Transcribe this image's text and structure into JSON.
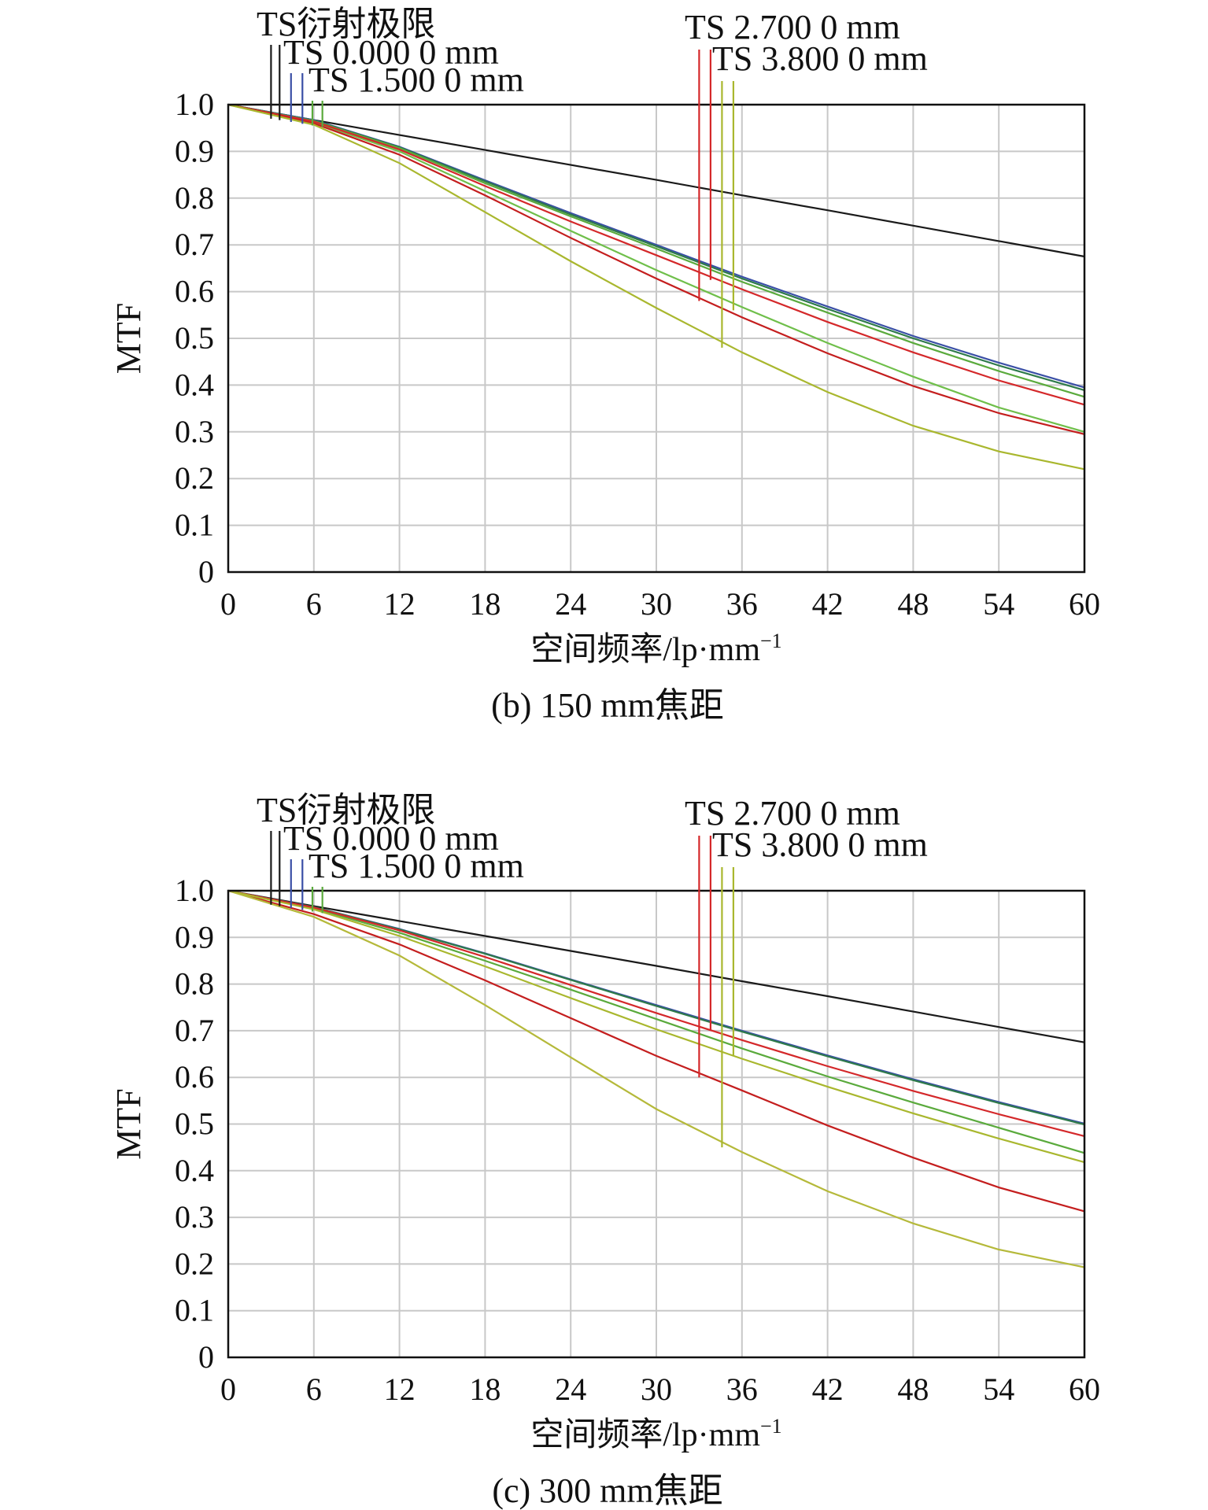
{
  "colors": {
    "diffraction": "#1a1a1a",
    "ts_0": "#3a4fa6",
    "ts_1_5": "#5aaa3c",
    "ts_2_7": "#d4282a",
    "ts_3_8": "#a9b72e",
    "grid": "#c8c8c8",
    "axis": "#111111"
  },
  "chart_data": [
    {
      "type": "line",
      "caption": "(b) 150 mm焦距",
      "xlabel": "空间频率/lp·mm",
      "xlabel_sup": "−1",
      "ylabel": "MTF",
      "xlim": [
        0,
        60
      ],
      "ylim": [
        0,
        1.0
      ],
      "xticks": [
        0,
        6,
        12,
        18,
        24,
        30,
        36,
        42,
        48,
        54,
        60
      ],
      "ytick_labels": [
        "0",
        "0.1",
        "0.2",
        "0.3",
        "0.4",
        "0.5",
        "0.6",
        "0.7",
        "0.8",
        "0.9",
        "1.0"
      ],
      "grid": true,
      "legend": [
        "TS衍射极限",
        "TS 0.000 0 mm",
        "TS 1.500 0 mm",
        "TS 2.700 0 mm",
        "TS 3.800 0 mm"
      ],
      "x": [
        0,
        6,
        12,
        18,
        24,
        30,
        36,
        42,
        48,
        54,
        60
      ],
      "series": [
        {
          "name": "TS衍射极限",
          "color": "#1a1a1a",
          "values": [
            1.0,
            0.967,
            0.935,
            0.903,
            0.871,
            0.839,
            0.806,
            0.774,
            0.741,
            0.708,
            0.675
          ]
        },
        {
          "name": "TS 0.000 0 mm",
          "color": "#3a4fa6",
          "values": [
            1.0,
            0.967,
            0.91,
            0.838,
            0.768,
            0.7,
            0.632,
            0.568,
            0.505,
            0.448,
            0.395
          ]
        },
        {
          "name": "TS 0.000 0 mm",
          "color": "#2e7a4a",
          "values": [
            1.0,
            0.966,
            0.909,
            0.836,
            0.765,
            0.697,
            0.628,
            0.563,
            0.5,
            0.442,
            0.389
          ]
        },
        {
          "name": "TS 1.500 0 mm",
          "color": "#5aaa3c",
          "values": [
            1.0,
            0.965,
            0.907,
            0.832,
            0.761,
            0.692,
            0.621,
            0.555,
            0.49,
            0.43,
            0.375
          ]
        },
        {
          "name": "TS 1.500 0 mm",
          "color": "#6fbf4a",
          "values": [
            1.0,
            0.962,
            0.9,
            0.815,
            0.73,
            0.646,
            0.567,
            0.49,
            0.418,
            0.352,
            0.3
          ]
        },
        {
          "name": "TS 2.700 0 mm",
          "color": "#d4282a",
          "values": [
            1.0,
            0.964,
            0.904,
            0.826,
            0.75,
            0.678,
            0.605,
            0.535,
            0.47,
            0.41,
            0.358
          ]
        },
        {
          "name": "TS 2.700 0 mm",
          "color": "#c41e1e",
          "values": [
            1.0,
            0.96,
            0.893,
            0.806,
            0.715,
            0.628,
            0.545,
            0.468,
            0.398,
            0.34,
            0.295
          ]
        },
        {
          "name": "TS 3.800 0 mm",
          "color": "#a9b72e",
          "values": [
            1.0,
            0.957,
            0.875,
            0.77,
            0.665,
            0.565,
            0.47,
            0.385,
            0.313,
            0.258,
            0.22
          ]
        }
      ]
    },
    {
      "type": "line",
      "caption": "(c) 300 mm焦距",
      "xlabel": "空间频率/lp·mm",
      "xlabel_sup": "−1",
      "ylabel": "MTF",
      "xlim": [
        0,
        60
      ],
      "ylim": [
        0,
        1.0
      ],
      "xticks": [
        0,
        6,
        12,
        18,
        24,
        30,
        36,
        42,
        48,
        54,
        60
      ],
      "ytick_labels": [
        "0",
        "0.1",
        "0.2",
        "0.3",
        "0.4",
        "0.5",
        "0.6",
        "0.7",
        "0.8",
        "0.9",
        "1.0"
      ],
      "grid": true,
      "legend": [
        "TS衍射极限",
        "TS 0.000 0 mm",
        "TS 1.500 0 mm",
        "TS 2.700 0 mm",
        "TS 3.800 0 mm"
      ],
      "x": [
        0,
        6,
        12,
        18,
        24,
        30,
        36,
        42,
        48,
        54,
        60
      ],
      "series": [
        {
          "name": "TS衍射极限",
          "color": "#1a1a1a",
          "values": [
            1.0,
            0.967,
            0.935,
            0.903,
            0.871,
            0.839,
            0.806,
            0.774,
            0.741,
            0.708,
            0.675
          ]
        },
        {
          "name": "TS 0.000 0 mm",
          "color": "#3a4fa6",
          "values": [
            1.0,
            0.965,
            0.918,
            0.866,
            0.81,
            0.755,
            0.7,
            0.647,
            0.596,
            0.547,
            0.501
          ]
        },
        {
          "name": "TS 0.000 0 mm",
          "color": "#2e7a4a",
          "values": [
            1.0,
            0.965,
            0.917,
            0.865,
            0.809,
            0.753,
            0.698,
            0.645,
            0.594,
            0.545,
            0.499
          ]
        },
        {
          "name": "TS 1.500 0 mm",
          "color": "#5aaa3c",
          "values": [
            1.0,
            0.962,
            0.91,
            0.85,
            0.788,
            0.725,
            0.662,
            0.602,
            0.546,
            0.492,
            0.438
          ]
        },
        {
          "name": "TS 2.700 0 mm",
          "color": "#d4282a",
          "values": [
            1.0,
            0.964,
            0.915,
            0.858,
            0.798,
            0.738,
            0.68,
            0.624,
            0.571,
            0.521,
            0.474
          ]
        },
        {
          "name": "TS 2.700 0 mm",
          "color": "#c41e1e",
          "values": [
            1.0,
            0.95,
            0.885,
            0.808,
            0.727,
            0.646,
            0.572,
            0.497,
            0.428,
            0.364,
            0.313
          ]
        },
        {
          "name": "TS 3.800 0 mm",
          "color": "#a9b72e",
          "values": [
            1.0,
            0.96,
            0.903,
            0.838,
            0.77,
            0.703,
            0.64,
            0.58,
            0.523,
            0.469,
            0.418
          ]
        },
        {
          "name": "TS 3.800 0 mm",
          "color": "#b5b93a",
          "values": [
            1.0,
            0.944,
            0.861,
            0.755,
            0.643,
            0.532,
            0.44,
            0.356,
            0.287,
            0.231,
            0.193
          ]
        }
      ]
    }
  ]
}
